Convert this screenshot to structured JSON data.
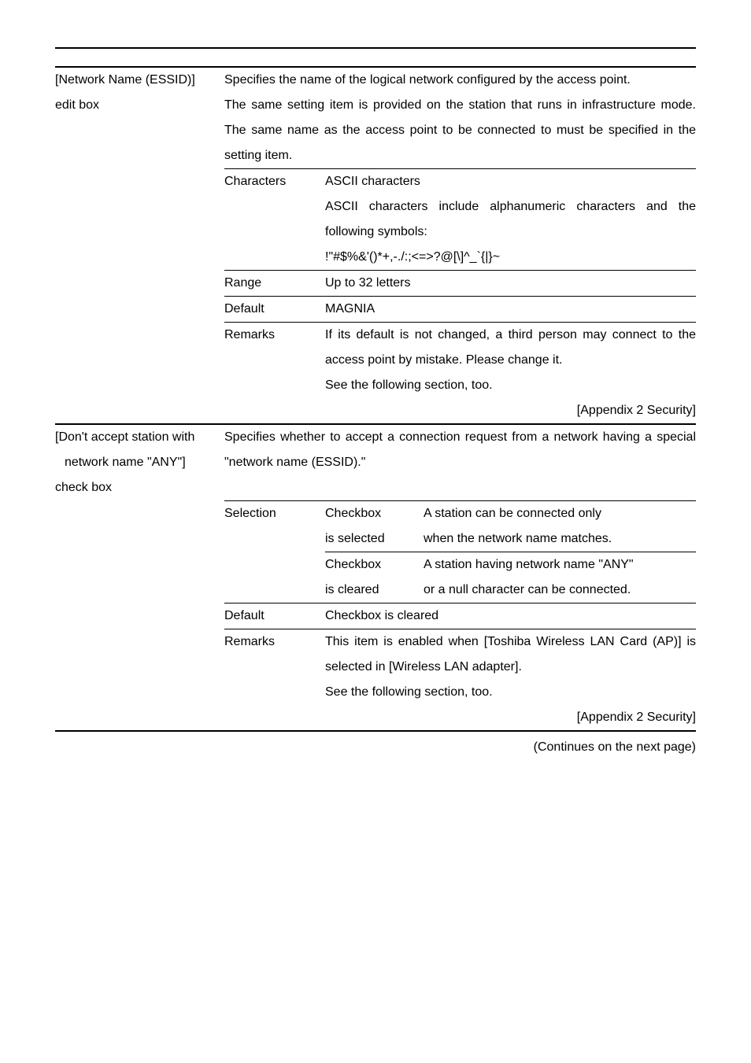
{
  "section1": {
    "label_line1": "[Network Name (ESSID)]",
    "label_line2": "edit box",
    "desc1": "Specifies the name of the logical network configured by the access point.",
    "desc2": "The same setting item is provided on the station that runs in infrastructure mode.  The same name as the access point to be connected to must be specified in the setting item.",
    "characters_label": "Characters",
    "characters_l1": "ASCII characters",
    "characters_l2": "ASCII characters include alphanumeric characters and the following symbols:",
    "characters_l3": "!\"#$%&'()*+,-./:;<=>?@[\\]^_`{|}~",
    "range_label": "Range",
    "range_val": "Up to 32 letters",
    "default_label": "Default",
    "default_val": "MAGNIA",
    "remarks_label": "Remarks",
    "remarks_l1": "If its default is not changed, a third person may connect to the access point by mistake. Please change it.",
    "remarks_l2": "See the following section, too.",
    "remarks_ref": "[Appendix 2  Security]"
  },
  "section2": {
    "label_line1": "[Don't accept station with",
    "label_line2": "network name \"ANY\"]",
    "label_line3": "check box",
    "desc1": "Specifies whether to accept a connection request from a network having a special \"network name (ESSID).\"",
    "selection_label": "Selection",
    "sel_r1c1": "Checkbox",
    "sel_r1c2": "A station can be connected only",
    "sel_r2c1": "is selected",
    "sel_r2c2": "when the network name matches.",
    "sel_r3c1": "Checkbox",
    "sel_r3c2": "A station having network name \"ANY\"",
    "sel_r4c1": "is cleared",
    "sel_r4c2": "or a null character can be connected.",
    "default_label": "Default",
    "default_val": "Checkbox is cleared",
    "remarks_label": "Remarks",
    "remarks_l1": "This item is enabled when [Toshiba Wireless LAN Card (AP)] is selected in [Wireless LAN adapter].",
    "remarks_l2": "See the following section, too.",
    "remarks_ref": "[Appendix 2  Security]"
  },
  "continues": "(Continues on the next page)"
}
